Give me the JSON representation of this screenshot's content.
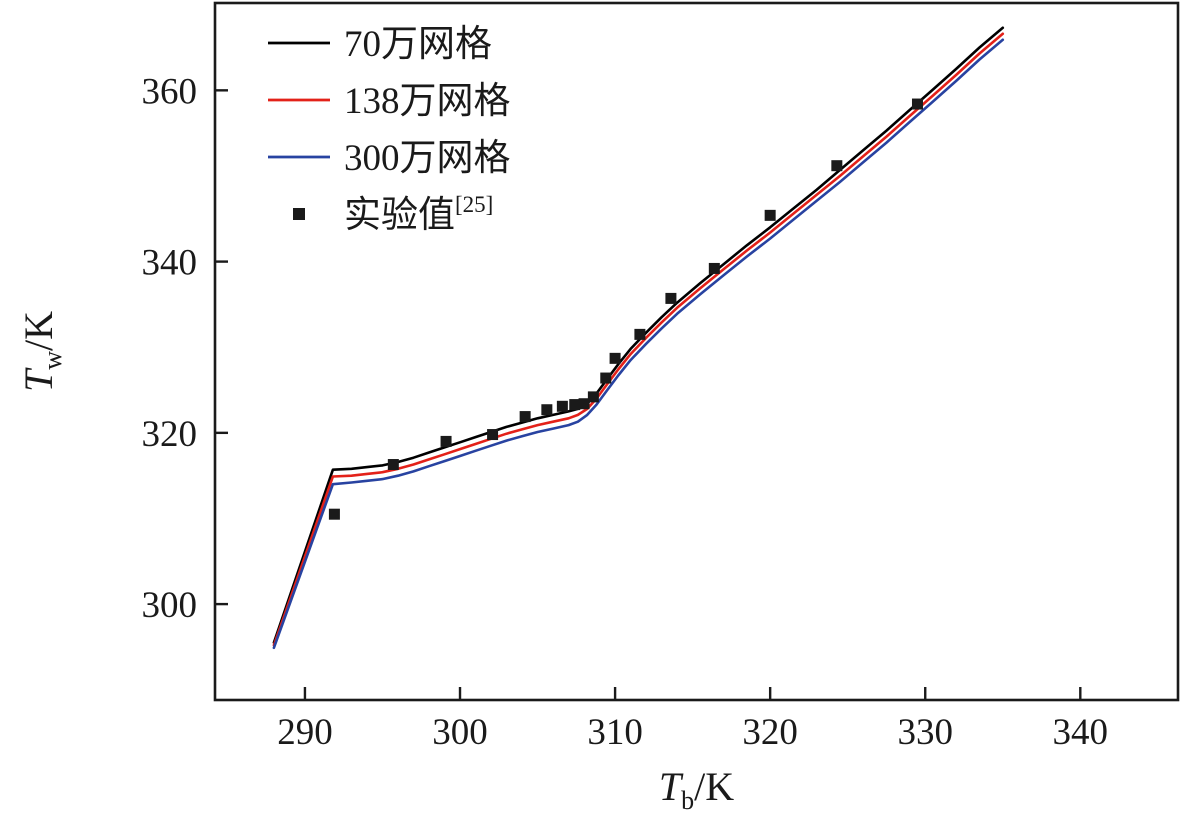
{
  "chart_data": {
    "type": "line",
    "title": "",
    "xlabel": "T_b/K",
    "ylabel": "T_w/K",
    "xlim": [
      284.2,
      346.3
    ],
    "ylim": [
      288.8,
      370.2
    ],
    "x_ticks": [
      290,
      300,
      310,
      320,
      330,
      340
    ],
    "y_ticks": [
      300,
      320,
      340,
      360
    ],
    "grid": false,
    "legend_position": "top-left",
    "frame_color": "#1a1a1a",
    "series": [
      {
        "name": "70万网格",
        "sup": "",
        "type": "line",
        "color": "#000000",
        "x": [
          288.0,
          291.8,
          293,
          294,
          295,
          296,
          297,
          298,
          299,
          300,
          301,
          302,
          303,
          304,
          305,
          306,
          307,
          307.6,
          308.2,
          308.8,
          309.5,
          310.2,
          311,
          312,
          313,
          314,
          315.5,
          317,
          318.5,
          320,
          321.5,
          323,
          324.5,
          326,
          327.5,
          329,
          330.5,
          332,
          333.5,
          335
        ],
        "y": [
          295.5,
          315.7,
          315.8,
          316.0,
          316.2,
          316.6,
          317.1,
          317.7,
          318.3,
          318.9,
          319.5,
          320.1,
          320.7,
          321.2,
          321.7,
          322.1,
          322.5,
          322.8,
          323.4,
          324.6,
          326.3,
          328.0,
          329.8,
          331.7,
          333.5,
          335.2,
          337.5,
          339.7,
          341.9,
          344.0,
          346.2,
          348.4,
          350.7,
          353.0,
          355.3,
          357.7,
          360.1,
          362.5,
          365.0,
          367.3
        ]
      },
      {
        "name": "138万网格",
        "sup": "",
        "type": "line",
        "color": "#e32119",
        "x": [
          288.0,
          291.8,
          293,
          294,
          295,
          296,
          297,
          298,
          299,
          300,
          301,
          302,
          303,
          304,
          305,
          306,
          307,
          307.6,
          308.2,
          308.8,
          309.5,
          310.2,
          311,
          312,
          313,
          314,
          315.5,
          317,
          318.5,
          320,
          321.5,
          323,
          324.5,
          326,
          327.5,
          329,
          330.5,
          332,
          333.5,
          335
        ],
        "y": [
          295.2,
          314.9,
          315.0,
          315.2,
          315.4,
          315.8,
          316.3,
          316.9,
          317.5,
          318.1,
          318.7,
          319.3,
          319.9,
          320.4,
          320.9,
          321.3,
          321.7,
          322.1,
          322.8,
          324.0,
          325.7,
          327.4,
          329.2,
          331.1,
          332.9,
          334.6,
          336.9,
          339.1,
          341.3,
          343.4,
          345.6,
          347.8,
          350.0,
          352.3,
          354.6,
          357.0,
          359.4,
          361.8,
          364.3,
          366.6
        ]
      },
      {
        "name": "300万网格",
        "sup": "",
        "type": "line",
        "color": "#2843a1",
        "x": [
          288.0,
          291.8,
          293,
          294,
          295,
          296,
          297,
          298,
          299,
          300,
          301,
          302,
          303,
          304,
          305,
          306,
          307,
          307.6,
          308.2,
          308.8,
          309.5,
          310.2,
          311,
          312,
          313,
          314,
          315.5,
          317,
          318.5,
          320,
          321.5,
          323,
          324.5,
          326,
          327.5,
          329,
          330.5,
          332,
          333.5,
          335
        ],
        "y": [
          294.9,
          314.0,
          314.2,
          314.4,
          314.6,
          315.0,
          315.5,
          316.1,
          316.7,
          317.3,
          317.9,
          318.5,
          319.1,
          319.6,
          320.1,
          320.5,
          320.9,
          321.3,
          322.1,
          323.3,
          325.0,
          326.7,
          328.5,
          330.4,
          332.2,
          333.9,
          336.2,
          338.4,
          340.6,
          342.7,
          344.9,
          347.1,
          349.3,
          351.6,
          353.9,
          356.3,
          358.7,
          361.1,
          363.6,
          365.9
        ]
      },
      {
        "name": "实验值",
        "sup": "[25]",
        "type": "scatter",
        "color": "#1a1a1a",
        "marker": "square",
        "x": [
          291.9,
          295.7,
          299.1,
          302.1,
          304.2,
          305.6,
          306.6,
          307.4,
          308.0,
          308.6,
          309.4,
          310.0,
          311.6,
          313.6,
          316.4,
          320.0,
          324.3,
          329.5
        ],
        "y": [
          310.5,
          316.3,
          319.0,
          319.8,
          321.9,
          322.7,
          323.1,
          323.3,
          323.4,
          324.2,
          326.4,
          328.7,
          331.5,
          335.7,
          339.2,
          345.4,
          351.2,
          358.4
        ]
      }
    ]
  }
}
